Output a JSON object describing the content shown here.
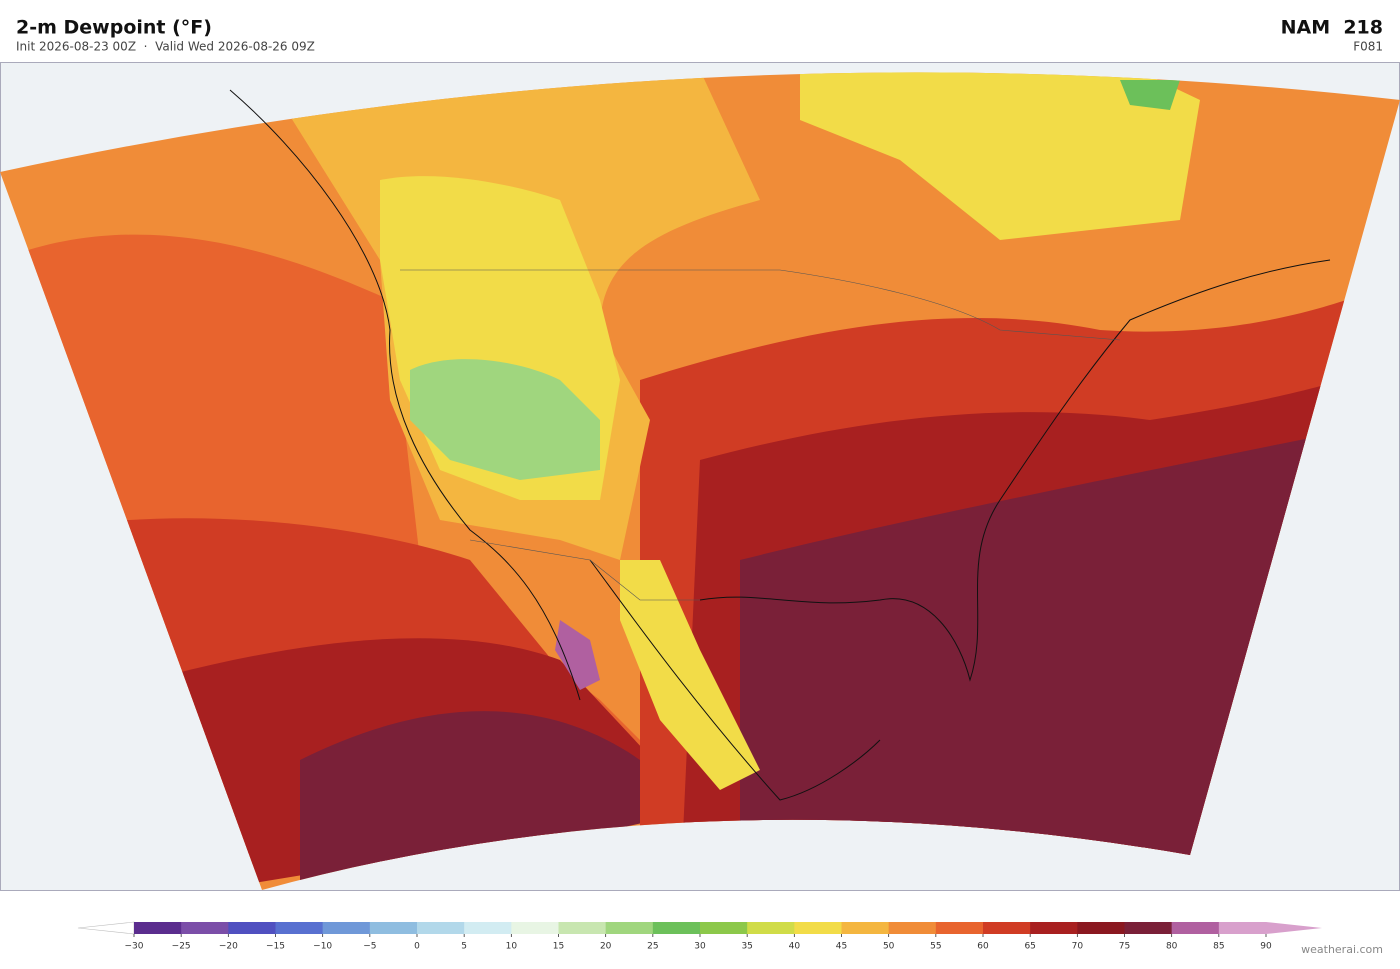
{
  "header": {
    "title": "2-m Dewpoint  (°F)",
    "subtitle": "Init 2026-08-23 00Z  ·  Valid Wed 2026-08-26 09Z",
    "model": "NAM  218",
    "forecast_hour": "F081"
  },
  "colorbar": {
    "ticks": [
      {
        "value": -30,
        "label": "−30"
      },
      {
        "value": -25,
        "label": "−25"
      },
      {
        "value": -20,
        "label": "−20"
      },
      {
        "value": -15,
        "label": "−15"
      },
      {
        "value": -10,
        "label": "−10"
      },
      {
        "value": -5,
        "label": "−5"
      },
      0,
      5,
      10,
      15,
      20,
      25,
      30,
      35,
      40,
      45,
      50,
      55,
      60,
      65,
      70,
      75,
      80,
      85,
      90
    ],
    "colors": [
      "#5b2d8e",
      "#7b4ea8",
      "#5050c0",
      "#5870d0",
      "#6f98d8",
      "#8fbde0",
      "#b2d8ea",
      "#d2ecf2",
      "#e8f5e4",
      "#c8e6b0",
      "#a0d67e",
      "#6cc05a",
      "#8cc84a",
      "#d0dc48",
      "#f2dc48",
      "#f4b640",
      "#f08c38",
      "#e8642e",
      "#d03c24",
      "#a82020",
      "#8a1820",
      "#7a2038",
      "#b060a0",
      "#d8a0cc"
    ],
    "under_color": "#ffffff",
    "over_color": "#d8a0cc"
  },
  "credit": "weatherai.com"
}
